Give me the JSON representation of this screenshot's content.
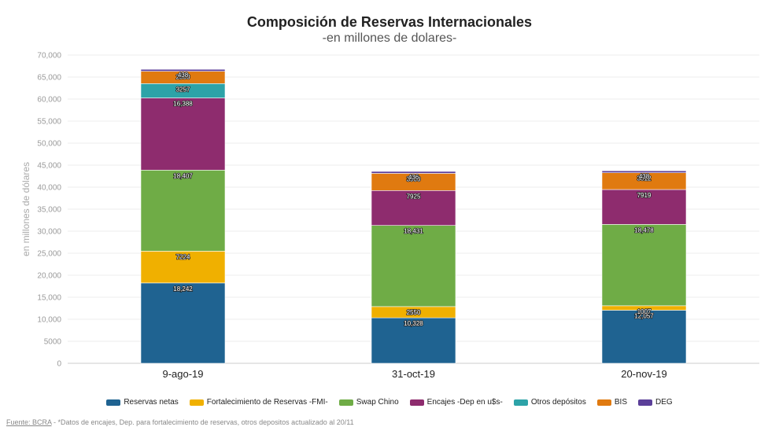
{
  "chart_data": {
    "type": "bar",
    "stacked": true,
    "title": "Composición de Reservas Internacionales",
    "subtitle": "-en millones de dolares-",
    "ylabel": "en millones de dólares",
    "xlabel": "",
    "ylim": [
      0,
      70000
    ],
    "y_ticks": [
      0,
      5000,
      10000,
      15000,
      20000,
      25000,
      30000,
      35000,
      40000,
      45000,
      50000,
      55000,
      60000,
      65000,
      70000
    ],
    "y_tick_labels": [
      "0",
      "5000",
      "10,000",
      "15,000",
      "20,000",
      "25,000",
      "30,000",
      "35,000",
      "40,000",
      "45,000",
      "50,000",
      "55,000",
      "60,000",
      "65,000",
      "70,000"
    ],
    "grid": true,
    "legend_position": "bottom",
    "categories": [
      "9-ago-19",
      "31-oct-19",
      "20-nov-19"
    ],
    "series": [
      {
        "name": "Reservas netas",
        "color": "#1f6391",
        "values": [
          18242,
          10328,
          12057
        ],
        "labels": [
          "18,242",
          "10,328",
          "12,057"
        ]
      },
      {
        "name": "Fortalecimiento de Reservas -FMI-",
        "color": "#f0b000",
        "values": [
          7224,
          2550,
          1007
        ],
        "labels": [
          "7224",
          "2550",
          "1007"
        ]
      },
      {
        "name": "Swap Chino",
        "color": "#6fac46",
        "values": [
          18407,
          18431,
          18478
        ],
        "labels": [
          "18,407",
          "18,431",
          "18,478"
        ]
      },
      {
        "name": "Encajes -Dep en u$s-",
        "color": "#8e2c6e",
        "values": [
          16388,
          7925,
          7919
        ],
        "labels": [
          "16,388",
          "7925",
          "7919"
        ]
      },
      {
        "name": "Otros depósitos",
        "color": "#2da3a8",
        "values": [
          3257,
          0,
          0
        ],
        "labels": [
          "3257",
          "",
          ""
        ]
      },
      {
        "name": "BIS",
        "color": "#e07a10",
        "values": [
          2800,
          3900,
          3812
        ],
        "labels": [
          "2800",
          "3900",
          "3812"
        ]
      },
      {
        "name": "DEG",
        "color": "#5b3f99",
        "values": [
          438,
          436,
          438
        ],
        "labels": [
          "438",
          "436",
          "438"
        ]
      }
    ]
  },
  "source": {
    "label": "Fuente: BCRA",
    "note": " - *Datos de encajes, Dep. para fortalecimiento de reservas, otros depositos actualizado al 20/11"
  }
}
